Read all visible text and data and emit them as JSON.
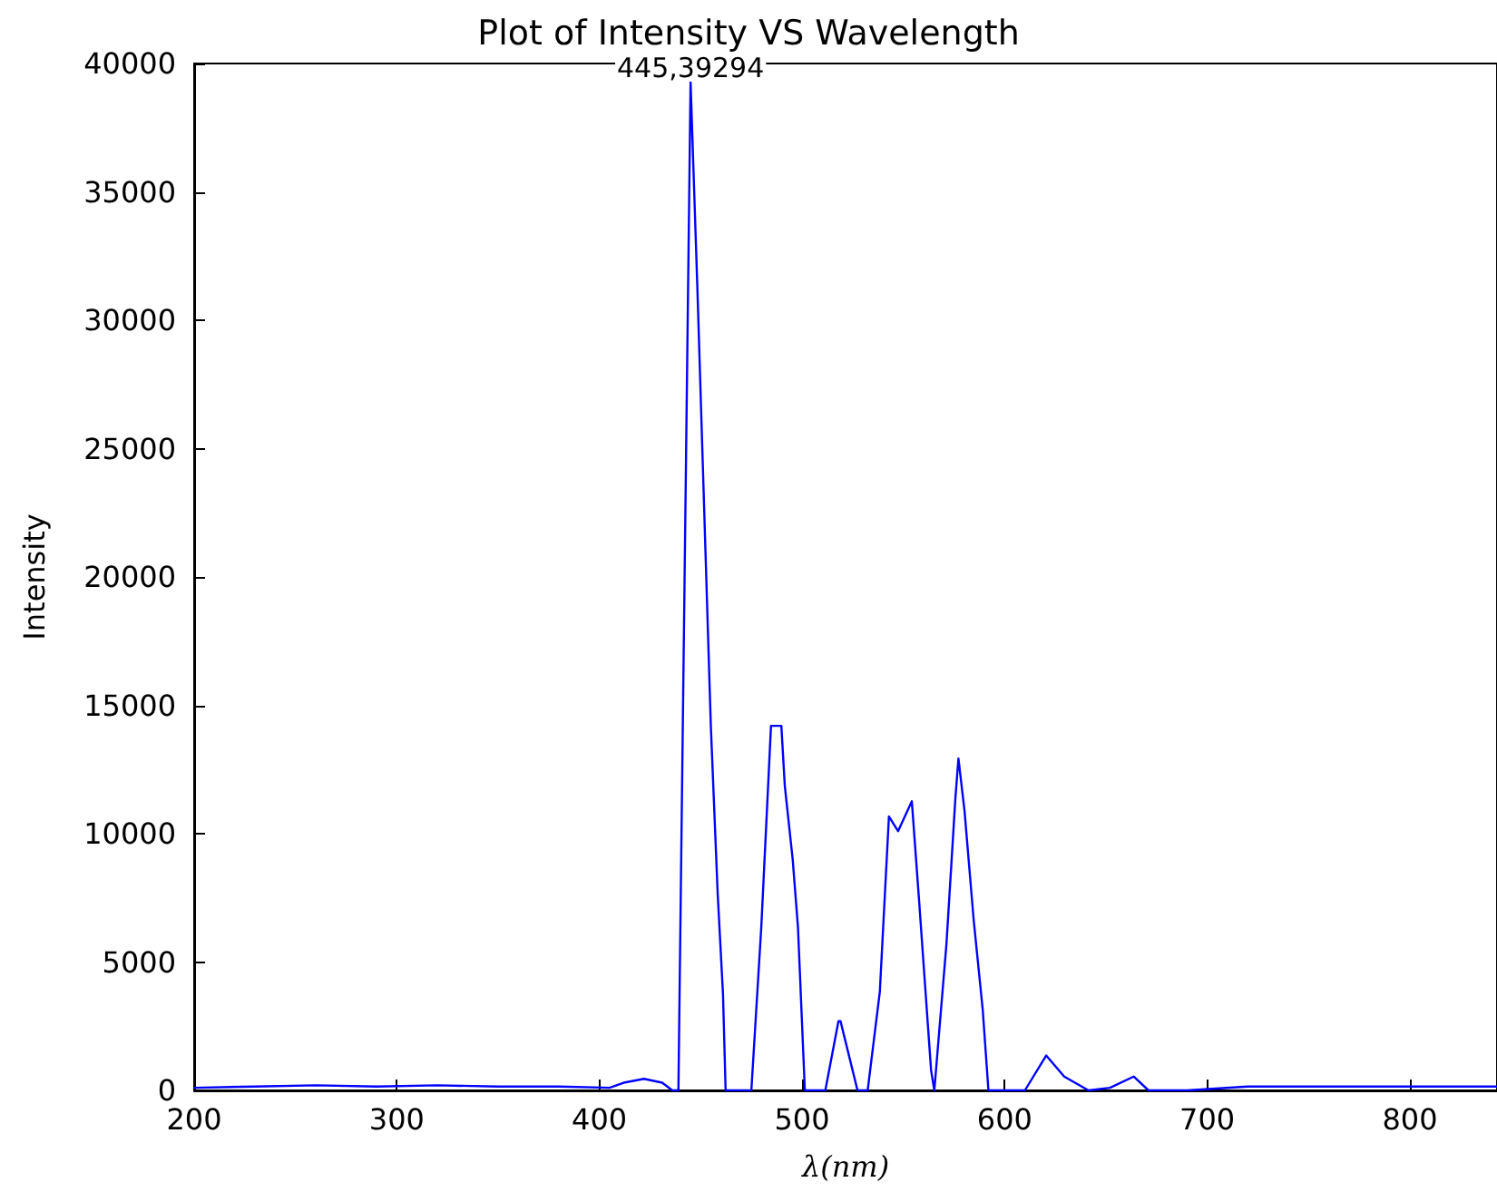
{
  "chart_data": {
    "type": "line",
    "title": "Plot of Intensity VS Wavelength",
    "xlabel": "λ(nm)",
    "ylabel": "Intensity",
    "x": [
      200,
      230,
      260,
      290,
      320,
      350,
      380,
      405,
      412,
      422,
      431,
      436,
      439,
      445,
      448.3,
      455,
      458.4,
      461,
      462.3,
      475,
      479.9,
      484.7,
      489.8,
      491.5,
      495.4,
      498,
      501.4,
      511.5,
      518,
      519,
      527.4,
      532.4,
      538.4,
      542.9,
      547.4,
      554.2,
      557.8,
      563.7,
      565.3,
      571.3,
      575.7,
      577.2,
      580.2,
      584.7,
      589.2,
      592,
      610,
      620.5,
      629.4,
      641.4,
      652,
      663.7,
      671,
      690,
      720,
      750,
      780,
      810,
      843
    ],
    "series": [
      {
        "color": "#0000ff",
        "values": [
          100,
          150,
          200,
          150,
          200,
          150,
          150,
          100,
          300,
          450,
          300,
          0,
          0,
          39294,
          31400,
          14200,
          7630,
          3750,
          0,
          0,
          6360,
          14200,
          14200,
          11870,
          9000,
          6360,
          0,
          0,
          2700,
          2700,
          0,
          0,
          3840,
          10670,
          10100,
          11260,
          7370,
          780,
          0,
          5720,
          11380,
          12930,
          10900,
          6660,
          3130,
          0,
          0,
          1360,
          540,
          0,
          100,
          540,
          0,
          0,
          150,
          150,
          150,
          150,
          150
        ]
      }
    ],
    "xlim": [
      200,
      843
    ],
    "xticks": [
      200,
      300,
      400,
      500,
      600,
      700,
      800
    ],
    "ylim": [
      0,
      40000
    ],
    "yticks": [
      0,
      5000,
      10000,
      15000,
      20000,
      25000,
      30000,
      35000,
      40000
    ],
    "annotations": [
      {
        "text": "445,39294",
        "x": 445,
        "y": 39294
      }
    ],
    "grid": false,
    "marker": "none",
    "line_style": "solid"
  }
}
